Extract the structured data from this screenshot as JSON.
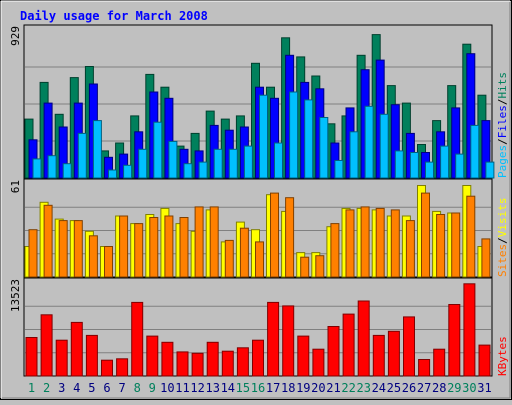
{
  "chart_data": {
    "type": "bar",
    "title": "Daily usage for March 2008",
    "colors": {
      "background": "#c0c0c0",
      "title": "#0000ff",
      "hits": "#00805c",
      "files": "#0000ff",
      "pages": "#00c0ff",
      "visits": "#ffff00",
      "sites": "#ff8000",
      "kbytes": "#ff0000",
      "weekend_label": "#00805c",
      "weekday_label": "#000080",
      "gridline": "#808080"
    },
    "categories": [
      "1",
      "2",
      "3",
      "4",
      "5",
      "6",
      "7",
      "8",
      "9",
      "10",
      "11",
      "12",
      "13",
      "14",
      "15",
      "16",
      "17",
      "18",
      "19",
      "20",
      "21",
      "22",
      "23",
      "24",
      "25",
      "26",
      "27",
      "28",
      "29",
      "30",
      "31"
    ],
    "weekend_days": [
      "1",
      "2",
      "8",
      "9",
      "15",
      "16",
      "22",
      "23",
      "29",
      "30"
    ],
    "panels": [
      {
        "id": "top",
        "ymax_label": "929",
        "ylim": [
          0,
          929
        ],
        "legend": [
          "Pages",
          "Files",
          "Hits"
        ],
        "series": [
          {
            "name": "Hits",
            "values": [
              370,
              600,
              400,
              630,
              700,
              170,
              220,
              390,
              650,
              570,
              200,
              280,
              420,
              370,
              390,
              720,
              570,
              880,
              760,
              640,
              340,
              390,
              770,
              900,
              580,
              470,
              210,
              360,
              580,
              840,
              520
            ]
          },
          {
            "name": "Files",
            "values": [
              240,
              470,
              320,
              470,
              590,
              130,
              150,
              290,
              540,
              500,
              180,
              170,
              330,
              300,
              320,
              570,
              500,
              770,
              600,
              560,
              220,
              440,
              680,
              740,
              460,
              280,
              160,
              290,
              440,
              780,
              360
            ]
          },
          {
            "name": "Pages",
            "values": [
              120,
              140,
              90,
              280,
              360,
              50,
              80,
              180,
              350,
              230,
              90,
              100,
              180,
              180,
              200,
              520,
              220,
              540,
              490,
              380,
              110,
              290,
              450,
              400,
              170,
              160,
              100,
              200,
              150,
              330,
              100
            ]
          }
        ]
      },
      {
        "id": "middle",
        "ymax_label": "61",
        "ylim": [
          0,
          61
        ],
        "legend": [
          "Sites",
          "Visits"
        ],
        "series": [
          {
            "name": "Visits",
            "values": [
              20,
              49,
              38,
              37,
              30,
              20,
              40,
              35,
              41,
              45,
              35,
              30,
              44,
              23,
              36,
              31,
              54,
              43,
              16,
              16,
              33,
              45,
              45,
              44,
              40,
              40,
              60,
              43,
              42,
              60,
              20
            ]
          },
          {
            "name": "Sites",
            "values": [
              31,
              47,
              37,
              37,
              27,
              20,
              40,
              35,
              39,
              40,
              39,
              46,
              46,
              24,
              32,
              23,
              55,
              52,
              13,
              14,
              35,
              44,
              46,
              45,
              44,
              37,
              55,
              41,
              42,
              53,
              25
            ]
          }
        ]
      },
      {
        "id": "bottom",
        "ymax_label": "13523",
        "ylim": [
          0,
          13523
        ],
        "legend": [
          "KBytes"
        ],
        "series": [
          {
            "name": "KBytes",
            "values": [
              5600,
              8900,
              5200,
              7800,
              5900,
              2300,
              2500,
              10700,
              5800,
              4900,
              3500,
              3300,
              4900,
              3600,
              4100,
              5200,
              10700,
              10200,
              5800,
              3900,
              7200,
              9000,
              10900,
              5900,
              6500,
              8600,
              2400,
              3900,
              10400,
              13400,
              4500
            ]
          }
        ]
      }
    ]
  }
}
